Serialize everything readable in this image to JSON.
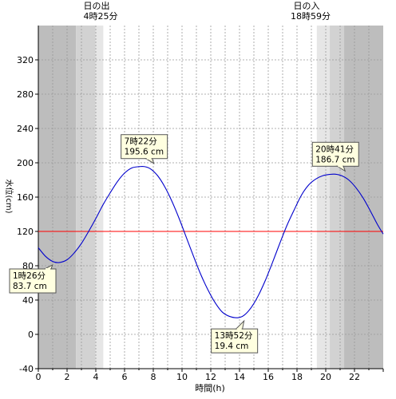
{
  "header": {
    "sunrise_label": "日の出",
    "sunrise_time": "4時25分",
    "sunset_label": "日の入",
    "sunset_time": "18時59分"
  },
  "chart_data": {
    "type": "line",
    "title": "",
    "xlabel": "時間(h)",
    "ylabel": "水位(cm)",
    "xlim": [
      0,
      24
    ],
    "ylim": [
      -40,
      360
    ],
    "x_ticks": [
      0,
      2,
      4,
      6,
      8,
      10,
      12,
      14,
      16,
      18,
      20,
      22
    ],
    "y_ticks": [
      -40,
      0,
      40,
      80,
      120,
      160,
      200,
      240,
      280,
      320
    ],
    "grid": true,
    "reference_line": {
      "value": 120,
      "color": "#ff0000"
    },
    "sunrise_hour": 4.42,
    "sunset_hour": 18.98,
    "series": [
      {
        "color": "#0000cc",
        "x": [
          0,
          0.5,
          1,
          1.43,
          2,
          2.5,
          3,
          3.5,
          4,
          4.5,
          5,
          5.5,
          6,
          6.5,
          7,
          7.37,
          7.8,
          8.3,
          8.8,
          9.3,
          9.8,
          10.3,
          10.8,
          11.3,
          11.8,
          12.3,
          12.8,
          13.3,
          13.87,
          14.3,
          14.8,
          15.3,
          15.8,
          16.3,
          16.8,
          17.3,
          17.8,
          18.3,
          18.8,
          19.3,
          19.8,
          20.3,
          20.68,
          21.1,
          21.6,
          22.1,
          22.6,
          23.1,
          23.6,
          24
        ],
        "y": [
          101,
          91,
          85,
          83.7,
          87,
          95,
          106,
          120,
          135,
          151,
          165,
          178,
          188,
          194,
          195.5,
          195.6,
          193,
          185,
          172,
          155,
          135,
          113,
          91,
          70,
          52,
          37,
          26,
          21,
          19.4,
          22,
          31,
          45,
          63,
          84,
          106,
          127,
          145,
          162,
          174,
          181,
          185,
          186.5,
          186.7,
          185,
          180,
          171,
          159,
          144,
          128,
          117
        ]
      }
    ],
    "annotations": [
      {
        "type": "max",
        "time": "7時22分",
        "value": "195.6 cm",
        "x": 7.37,
        "y": 195.6
      },
      {
        "type": "min",
        "time": "1時26分",
        "value": "83.7 cm",
        "x": 1.43,
        "y": 83.7
      },
      {
        "type": "min",
        "time": "13時52分",
        "value": "19.4 cm",
        "x": 13.87,
        "y": 19.4
      },
      {
        "type": "max",
        "time": "20時41分",
        "value": "186.7 cm",
        "x": 20.68,
        "y": 186.7
      }
    ]
  }
}
